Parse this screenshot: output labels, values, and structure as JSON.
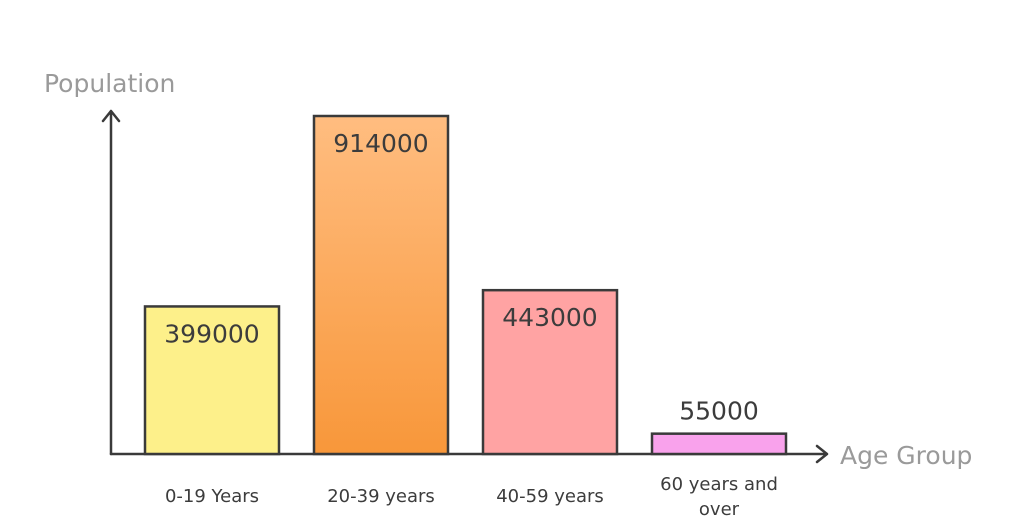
{
  "chart_data": {
    "type": "bar",
    "title": "",
    "xlabel": "Age Group",
    "ylabel": "Population",
    "categories": [
      "0-19 Years",
      "20-39 years",
      "40-59 years",
      "60 years and over"
    ],
    "values": [
      399000,
      914000,
      443000,
      55000
    ],
    "value_labels": [
      "399000",
      "914000",
      "443000",
      "55000"
    ],
    "ylim": [
      0,
      914000
    ],
    "grid": false,
    "legend": "none",
    "colors": [
      {
        "top": "#fdf08a",
        "bottom": "#fdf08a"
      },
      {
        "top": "#ffbd80",
        "bottom": "#f8973a"
      },
      {
        "top": "#ffa3a3",
        "bottom": "#ffa3a3"
      },
      {
        "top": "#f9a2ec",
        "bottom": "#f9a2ec"
      }
    ]
  }
}
